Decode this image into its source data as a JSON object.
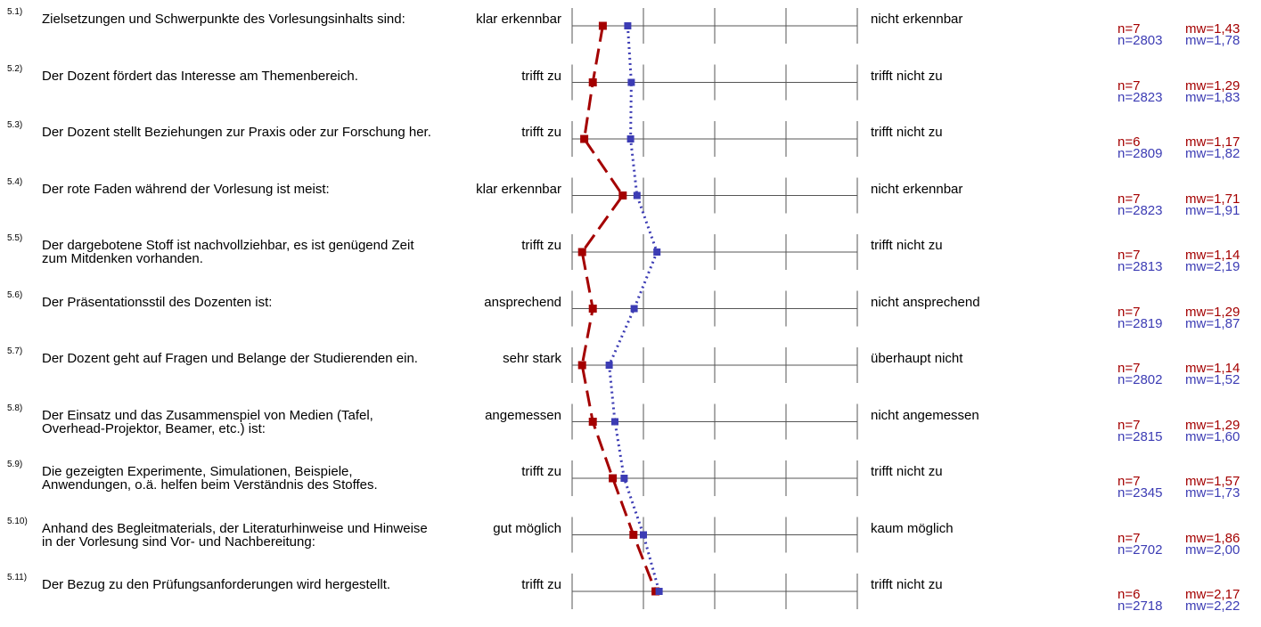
{
  "chart_data": {
    "type": "line",
    "scale": {
      "min": 1,
      "max": 5
    },
    "series": [],
    "items": [
      {
        "num": "5.1)",
        "question": "Zielsetzungen und Schwerpunkte des Vorlesungsinhalts sind:",
        "left": "klar erkennbar",
        "right": "nicht erkennbar",
        "red": {
          "n": "n=7",
          "mw": "mw=1,43",
          "value": 1.43
        },
        "blue": {
          "n": "n=2803",
          "mw": "mw=1,78",
          "value": 1.78
        }
      },
      {
        "num": "5.2)",
        "question": "Der Dozent fördert das Interesse am Themenbereich.",
        "left": "trifft zu",
        "right": "trifft nicht zu",
        "red": {
          "n": "n=7",
          "mw": "mw=1,29",
          "value": 1.29
        },
        "blue": {
          "n": "n=2823",
          "mw": "mw=1,83",
          "value": 1.83
        }
      },
      {
        "num": "5.3)",
        "question": "Der Dozent stellt Beziehungen zur Praxis oder zur Forschung her.",
        "left": "trifft zu",
        "right": "trifft nicht zu",
        "red": {
          "n": "n=6",
          "mw": "mw=1,17",
          "value": 1.17
        },
        "blue": {
          "n": "n=2809",
          "mw": "mw=1,82",
          "value": 1.82
        }
      },
      {
        "num": "5.4)",
        "question": "Der rote Faden während der Vorlesung ist meist:",
        "left": "klar erkennbar",
        "right": "nicht erkennbar",
        "red": {
          "n": "n=7",
          "mw": "mw=1,71",
          "value": 1.71
        },
        "blue": {
          "n": "n=2823",
          "mw": "mw=1,91",
          "value": 1.91
        }
      },
      {
        "num": "5.5)",
        "question": "Der dargebotene Stoff ist nachvollziehbar, es ist genügend Zeit zum Mitdenken vorhanden.",
        "left": "trifft zu",
        "right": "trifft nicht zu",
        "red": {
          "n": "n=7",
          "mw": "mw=1,14",
          "value": 1.14
        },
        "blue": {
          "n": "n=2813",
          "mw": "mw=2,19",
          "value": 2.19
        }
      },
      {
        "num": "5.6)",
        "question": "Der Präsentationsstil des Dozenten ist:",
        "left": "ansprechend",
        "right": "nicht ansprechend",
        "red": {
          "n": "n=7",
          "mw": "mw=1,29",
          "value": 1.29
        },
        "blue": {
          "n": "n=2819",
          "mw": "mw=1,87",
          "value": 1.87
        }
      },
      {
        "num": "5.7)",
        "question": "Der Dozent geht auf Fragen und Belange der Studierenden ein.",
        "left": "sehr stark",
        "right": "überhaupt nicht",
        "red": {
          "n": "n=7",
          "mw": "mw=1,14",
          "value": 1.14
        },
        "blue": {
          "n": "n=2802",
          "mw": "mw=1,52",
          "value": 1.52
        }
      },
      {
        "num": "5.8)",
        "question": "Der Einsatz und das Zusammenspiel von Medien (Tafel, Overhead-Projektor, Beamer, etc.) ist:",
        "left": "angemessen",
        "right": "nicht angemessen",
        "red": {
          "n": "n=7",
          "mw": "mw=1,29",
          "value": 1.29
        },
        "blue": {
          "n": "n=2815",
          "mw": "mw=1,60",
          "value": 1.6
        }
      },
      {
        "num": "5.9)",
        "question": "Die gezeigten Experimente, Simulationen, Beispiele, Anwendungen, o.ä. helfen beim Verständnis des Stoffes.",
        "left": "trifft zu",
        "right": "trifft nicht zu",
        "red": {
          "n": "n=7",
          "mw": "mw=1,57",
          "value": 1.57
        },
        "blue": {
          "n": "n=2345",
          "mw": "mw=1,73",
          "value": 1.73
        }
      },
      {
        "num": "5.10)",
        "question": "Anhand des Begleitmaterials, der Literaturhinweise und Hinweise in der Vorlesung sind Vor- und Nachbereitung:",
        "left": "gut möglich",
        "right": "kaum möglich",
        "red": {
          "n": "n=7",
          "mw": "mw=1,86",
          "value": 1.86
        },
        "blue": {
          "n": "n=2702",
          "mw": "mw=2,00",
          "value": 2.0
        }
      },
      {
        "num": "5.11)",
        "question": "Der Bezug zu den Prüfungsanforderungen wird hergestellt.",
        "left": "trifft zu",
        "right": "trifft nicht zu",
        "red": {
          "n": "n=6",
          "mw": "mw=2,17",
          "value": 2.17
        },
        "blue": {
          "n": "n=2718",
          "mw": "mw=2,22",
          "value": 2.22
        }
      }
    ],
    "colors": {
      "red": "#a40000",
      "blue": "#3c3cb4",
      "grid": "#555555"
    }
  }
}
